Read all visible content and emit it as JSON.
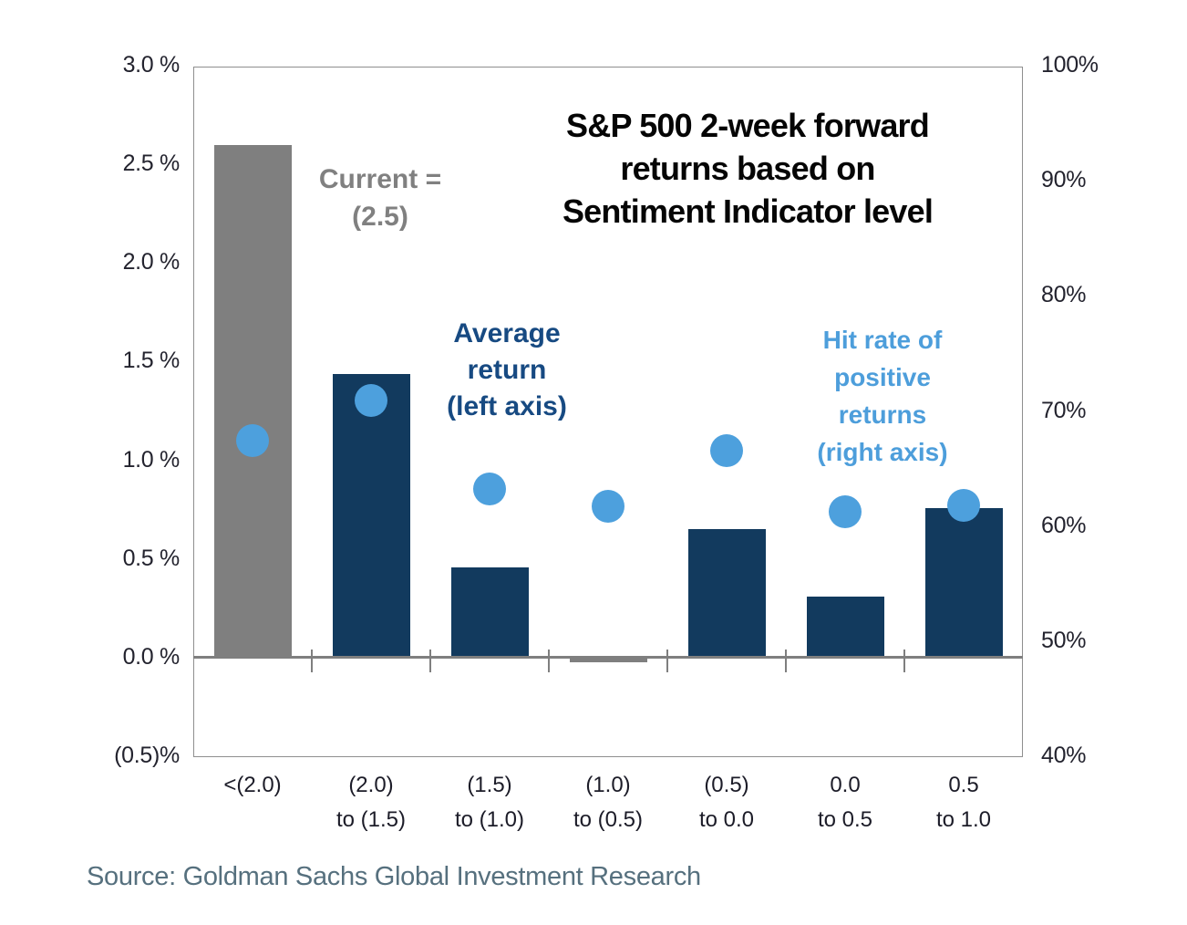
{
  "chart_data": {
    "type": "bar",
    "title": "S&P 500 2-week forward returns based on Sentiment Indicator level",
    "title_lines": [
      "S&P 500 2-week forward",
      "returns based on",
      "Sentiment Indicator level"
    ],
    "categories": [
      "<(2.0)",
      "(2.0)\nto (1.5)",
      "(1.5)\nto (1.0)",
      "(1.0)\nto (0.5)",
      "(0.5)\nto 0.0",
      "0.0\nto 0.5",
      "0.5\nto 1.0"
    ],
    "xlabel": "Sentiment Indicator level",
    "series": [
      {
        "name": "Average return (left axis)",
        "type": "bar",
        "axis": "left",
        "unit": "%",
        "values": [
          2.6,
          1.44,
          0.46,
          -0.02,
          0.65,
          0.31,
          0.76
        ]
      },
      {
        "name": "Hit rate of positive returns (right axis)",
        "type": "scatter",
        "axis": "right",
        "unit": "%",
        "values": [
          67.5,
          71.0,
          63.3,
          61.8,
          66.6,
          61.3,
          61.9
        ]
      }
    ],
    "left_axis": {
      "min": -0.5,
      "max": 3.0,
      "ticks": [
        "3.0 %",
        "2.5 %",
        "2.0 %",
        "1.5 %",
        "1.0 %",
        "0.5 %",
        "0.0 %",
        "(0.5)%"
      ]
    },
    "right_axis": {
      "min": 40,
      "max": 100,
      "ticks": [
        "100%",
        "90%",
        "80%",
        "70%",
        "60%",
        "50%",
        "40%"
      ]
    },
    "grid": false,
    "legend_position": "annotations inside plot",
    "annotations": {
      "current": {
        "lines": [
          "Current =",
          "(2.5)"
        ],
        "color": "#808080"
      },
      "avg_return": {
        "lines": [
          "Average",
          "return",
          "(left axis)"
        ],
        "color": "#174a82"
      },
      "hit_rate": {
        "lines": [
          "Hit rate of",
          "positive",
          "returns",
          "(right axis)"
        ],
        "color": "#4d9edb"
      }
    },
    "current_category_index": 0,
    "colors": {
      "bar_navy": "#123a5e",
      "bar_current_gray": "#7f7f7f",
      "near_zero_bar_gray": "#7f7f7f",
      "dot_blue": "#4da0dd",
      "axis_line": "#7f7f7f"
    },
    "source": "Source: Goldman Sachs Global Investment Research"
  }
}
